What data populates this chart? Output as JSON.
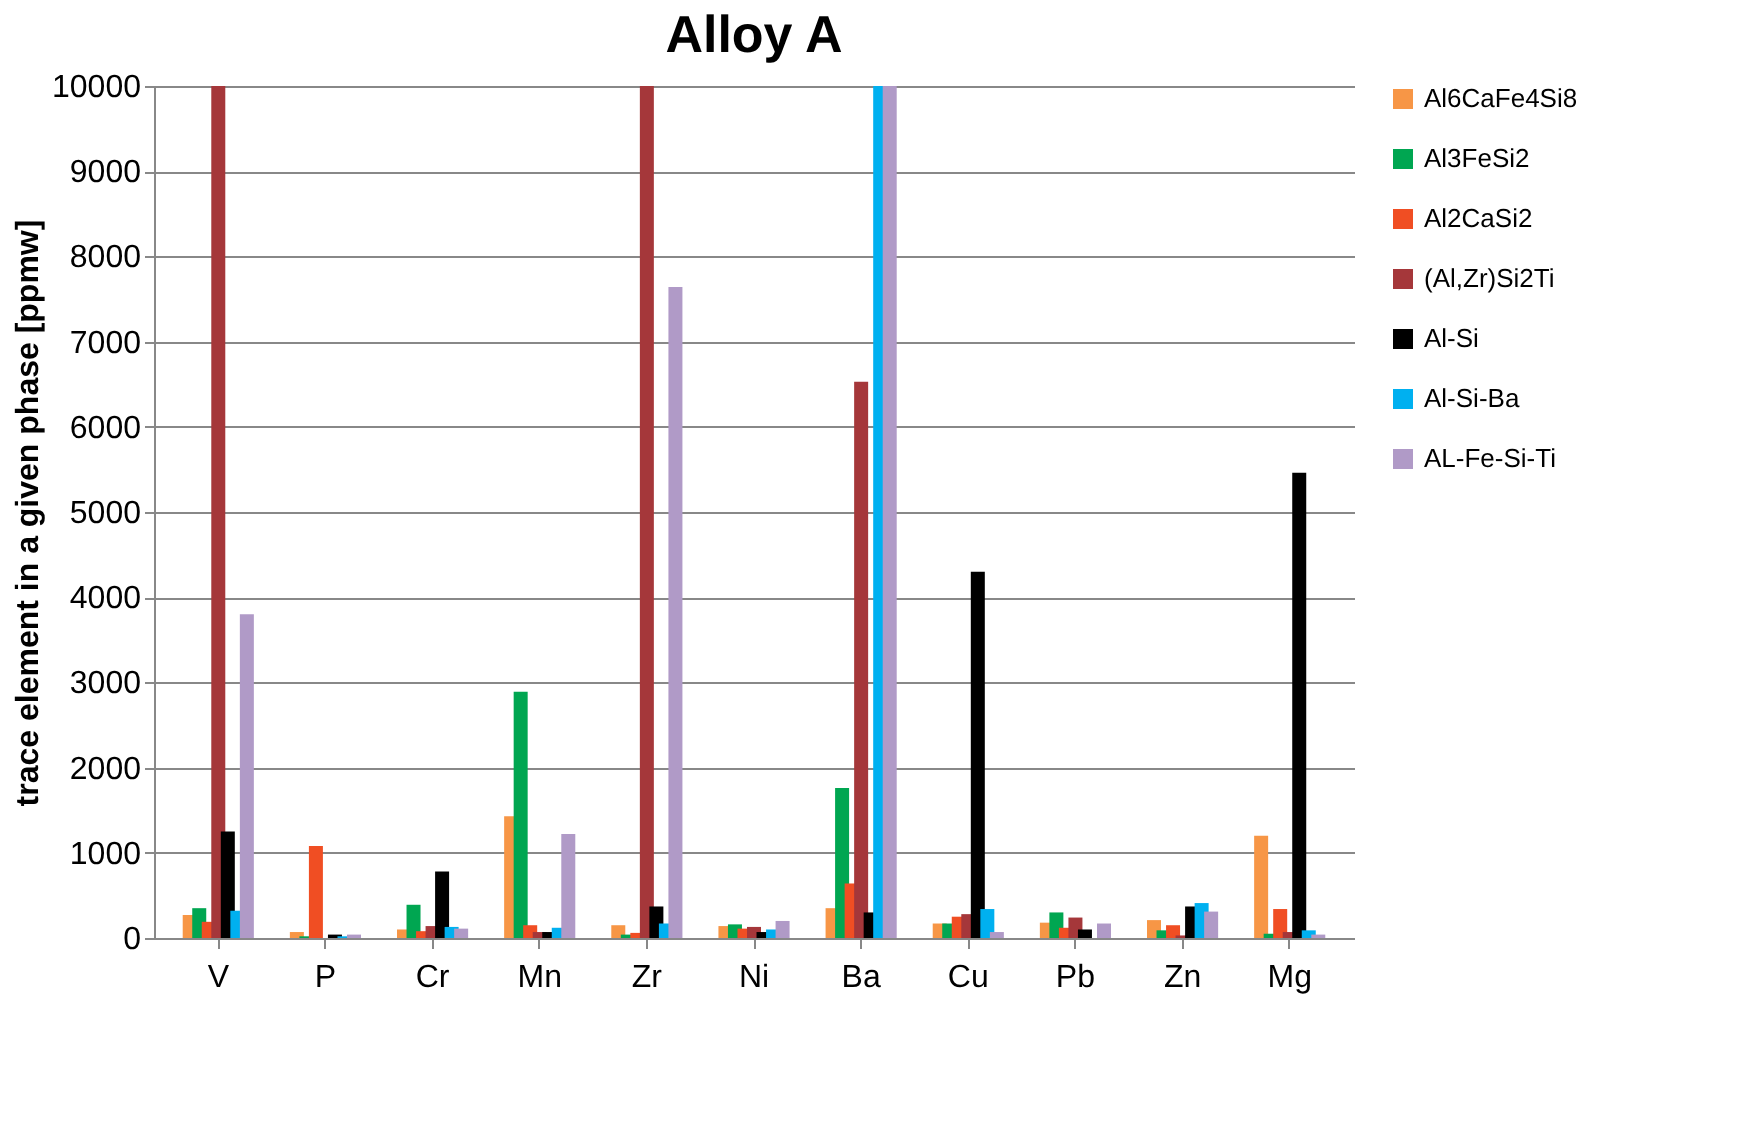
{
  "chart_data": {
    "type": "bar",
    "title": "Alloy A",
    "ylabel": "trace element in a given phase [ppmw]",
    "categories": [
      "V",
      "P",
      "Cr",
      "Mn",
      "Zr",
      "Ni",
      "Ba",
      "Cu",
      "Pb",
      "Zn",
      "Mg"
    ],
    "series": [
      {
        "name": "Al6CaFe4Si8",
        "color": "#f79646",
        "values": [
          270,
          70,
          100,
          1430,
          150,
          140,
          350,
          170,
          180,
          210,
          1200
        ]
      },
      {
        "name": "Al3FeSi2",
        "color": "#00a651",
        "values": [
          350,
          20,
          390,
          2890,
          40,
          160,
          1760,
          170,
          300,
          90,
          50
        ]
      },
      {
        "name": "Al2CaSi2",
        "color": "#f04e23",
        "values": [
          190,
          1080,
          80,
          150,
          60,
          110,
          640,
          250,
          120,
          150,
          340
        ]
      },
      {
        "name": "(Al,Zr)Si2Ti",
        "color": "#a5373a",
        "values": [
          10000,
          0,
          140,
          70,
          10000,
          130,
          6530,
          280,
          240,
          30,
          70
        ]
      },
      {
        "name": "Al-Si",
        "color": "#000000",
        "values": [
          1250,
          40,
          780,
          70,
          370,
          70,
          300,
          4300,
          100,
          370,
          5460
        ]
      },
      {
        "name": "Al-Si-Ba",
        "color": "#00b0f0",
        "values": [
          320,
          20,
          130,
          120,
          170,
          100,
          10000,
          340,
          0,
          410,
          90
        ]
      },
      {
        "name": "AL-Fe-Si-Ti",
        "color": "#b09ac7",
        "values": [
          3800,
          40,
          110,
          1220,
          7640,
          200,
          10000,
          70,
          170,
          310,
          40
        ]
      }
    ],
    "ylim": [
      0,
      10000
    ],
    "yticks": [
      0,
      1000,
      2000,
      3000,
      4000,
      5000,
      6000,
      7000,
      8000,
      9000,
      10000
    ],
    "grid": "y",
    "legend": "right"
  }
}
